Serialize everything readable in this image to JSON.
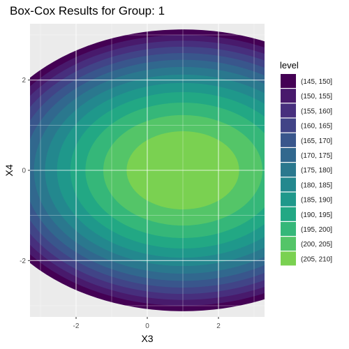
{
  "chart_data": {
    "type": "contour",
    "title": "Box-Cox Results for Group: 1",
    "xlabel": "X3",
    "ylabel": "X4",
    "xlim": [
      -3,
      3
    ],
    "ylim": [
      -3,
      3
    ],
    "x_ticks": [
      -2,
      0,
      2
    ],
    "y_ticks": [
      -2,
      0,
      2
    ],
    "x_tick_labels": [
      "-2",
      "0",
      "2"
    ],
    "y_tick_labels": [
      "-2",
      "0",
      "2"
    ],
    "grid": true,
    "legend_position": "right",
    "legend_title": "level",
    "levels": [
      {
        "label": "(145, 150]",
        "lo": 145,
        "hi": 150,
        "color": "#440154"
      },
      {
        "label": "(150, 155]",
        "lo": 150,
        "hi": 155,
        "color": "#481A6C"
      },
      {
        "label": "(155, 160]",
        "lo": 155,
        "hi": 160,
        "color": "#472F7D"
      },
      {
        "label": "(160, 165]",
        "lo": 160,
        "hi": 165,
        "color": "#414487"
      },
      {
        "label": "(165, 170]",
        "lo": 165,
        "hi": 170,
        "color": "#39568C"
      },
      {
        "label": "(170, 175]",
        "lo": 170,
        "hi": 175,
        "color": "#31688E"
      },
      {
        "label": "(175, 180]",
        "lo": 175,
        "hi": 180,
        "color": "#2A788E"
      },
      {
        "label": "(180, 185]",
        "lo": 180,
        "hi": 185,
        "color": "#23888E"
      },
      {
        "label": "(185, 190]",
        "lo": 185,
        "hi": 190,
        "color": "#1F988B"
      },
      {
        "label": "(190, 195]",
        "lo": 190,
        "hi": 195,
        "color": "#22A884"
      },
      {
        "label": "(195, 200]",
        "lo": 195,
        "hi": 200,
        "color": "#35B779"
      },
      {
        "label": "(200, 205]",
        "lo": 200,
        "hi": 205,
        "color": "#54C568"
      },
      {
        "label": "(205, 210]",
        "lo": 205,
        "hi": 210,
        "color": "#7AD151"
      }
    ],
    "surface": {
      "peak": 210,
      "center_x": 1,
      "center_y": 0,
      "coef_x": 2.0,
      "coef_y": 6.67
    }
  }
}
